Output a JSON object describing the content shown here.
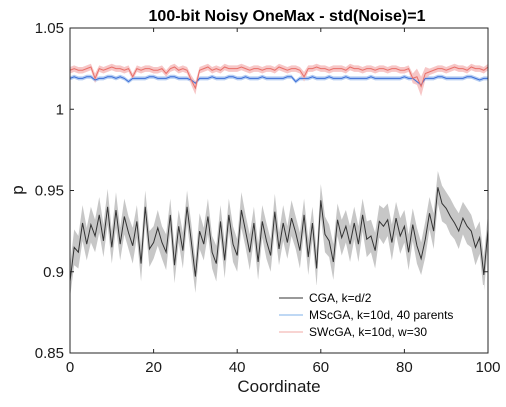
{
  "chart_data": {
    "type": "line",
    "title": "100-bit Noisy OneMax - std(Noise)=1",
    "xlabel": "Coordinate",
    "ylabel": "p",
    "xlim": [
      0,
      100
    ],
    "ylim": [
      0.85,
      1.05
    ],
    "xticks": [
      "0",
      "20",
      "40",
      "60",
      "80",
      "100"
    ],
    "yticks": [
      "0.85",
      "0.9",
      "0.95",
      "1",
      "1.05"
    ],
    "legend": {
      "position": "bottom-right",
      "entries": [
        "CGA, k=d/2",
        "MScGA, k=10d, 40 parents",
        "SWcGA, k=10d, w=30"
      ]
    },
    "series": [
      {
        "name": "CGA, k=d/2",
        "color": "#333333",
        "band_color": "#bdbdbd",
        "values": [
          0.894,
          0.915,
          0.912,
          0.93,
          0.917,
          0.929,
          0.922,
          0.935,
          0.919,
          0.94,
          0.915,
          0.938,
          0.917,
          0.934,
          0.924,
          0.916,
          0.931,
          0.905,
          0.94,
          0.914,
          0.918,
          0.927,
          0.918,
          0.912,
          0.935,
          0.904,
          0.928,
          0.913,
          0.94,
          0.919,
          0.897,
          0.925,
          0.917,
          0.934,
          0.912,
          0.905,
          0.931,
          0.907,
          0.935,
          0.917,
          0.91,
          0.938,
          0.925,
          0.912,
          0.93,
          0.906,
          0.931,
          0.919,
          0.91,
          0.937,
          0.914,
          0.93,
          0.918,
          0.933,
          0.924,
          0.913,
          0.935,
          0.909,
          0.93,
          0.902,
          0.944,
          0.923,
          0.919,
          0.906,
          0.932,
          0.921,
          0.928,
          0.917,
          0.93,
          0.917,
          0.935,
          0.92,
          0.922,
          0.913,
          0.931,
          0.928,
          0.932,
          0.918,
          0.933,
          0.922,
          0.928,
          0.912,
          0.929,
          0.916,
          0.908,
          0.92,
          0.936,
          0.925,
          0.952,
          0.942,
          0.939,
          0.934,
          0.93,
          0.925,
          0.933,
          0.928,
          0.925,
          0.915,
          0.921,
          0.898,
          0.926
        ],
        "band": [
          0.01,
          0.011,
          0.01,
          0.011,
          0.01,
          0.011,
          0.01,
          0.011,
          0.01,
          0.011,
          0.01,
          0.011,
          0.01,
          0.011,
          0.01,
          0.011,
          0.01,
          0.011,
          0.01,
          0.011,
          0.01,
          0.011,
          0.01,
          0.011,
          0.01,
          0.011,
          0.01,
          0.011,
          0.01,
          0.011,
          0.01,
          0.011,
          0.01,
          0.011,
          0.01,
          0.011,
          0.01,
          0.011,
          0.01,
          0.011,
          0.01,
          0.011,
          0.01,
          0.011,
          0.01,
          0.011,
          0.01,
          0.011,
          0.01,
          0.011,
          0.01,
          0.011,
          0.01,
          0.011,
          0.01,
          0.011,
          0.01,
          0.011,
          0.01,
          0.011,
          0.01,
          0.011,
          0.01,
          0.011,
          0.01,
          0.011,
          0.01,
          0.011,
          0.01,
          0.011,
          0.01,
          0.011,
          0.01,
          0.011,
          0.01,
          0.011,
          0.01,
          0.011,
          0.01,
          0.011,
          0.01,
          0.011,
          0.01,
          0.011,
          0.01,
          0.011,
          0.01,
          0.011,
          0.01,
          0.011,
          0.01,
          0.011,
          0.01,
          0.011,
          0.01,
          0.011,
          0.01,
          0.011,
          0.01,
          0.011,
          0.01
        ]
      },
      {
        "name": "MScGA, k=10d, 40 parents",
        "color": "#3c6fd8",
        "band_color": "#a8c4f0",
        "values": [
          1.019,
          1.02,
          1.019,
          1.019,
          1.02,
          1.02,
          1.018,
          1.019,
          1.019,
          1.02,
          1.02,
          1.019,
          1.02,
          1.019,
          1.017,
          1.019,
          1.019,
          1.019,
          1.019,
          1.02,
          1.02,
          1.019,
          1.019,
          1.019,
          1.02,
          1.02,
          1.019,
          1.019,
          1.019,
          1.018,
          1.016,
          1.019,
          1.019,
          1.019,
          1.02,
          1.019,
          1.019,
          1.019,
          1.02,
          1.02,
          1.019,
          1.019,
          1.02,
          1.019,
          1.019,
          1.019,
          1.02,
          1.019,
          1.019,
          1.019,
          1.019,
          1.019,
          1.02,
          1.02,
          1.017,
          1.019,
          1.019,
          1.019,
          1.02,
          1.019,
          1.019,
          1.019,
          1.02,
          1.019,
          1.019,
          1.019,
          1.02,
          1.019,
          1.019,
          1.019,
          1.019,
          1.019,
          1.02,
          1.019,
          1.019,
          1.019,
          1.019,
          1.019,
          1.019,
          1.019,
          1.02,
          1.019,
          1.019,
          1.017,
          1.015,
          1.019,
          1.019,
          1.019,
          1.02,
          1.02,
          1.019,
          1.019,
          1.019,
          1.019,
          1.019,
          1.02,
          1.02,
          1.019,
          1.018,
          1.019,
          1.019
        ],
        "band": [
          0.0012,
          0.0012,
          0.0012,
          0.0012,
          0.0012,
          0.0012,
          0.0012,
          0.0012,
          0.0012,
          0.0012,
          0.0012,
          0.0012,
          0.0012,
          0.0012,
          0.0012,
          0.0012,
          0.0012,
          0.0012,
          0.0012,
          0.0012,
          0.0012,
          0.0012,
          0.0012,
          0.0012,
          0.0012,
          0.0012,
          0.0012,
          0.0012,
          0.0012,
          0.0012,
          0.0012,
          0.0012,
          0.0012,
          0.0012,
          0.0012,
          0.0012,
          0.0012,
          0.0012,
          0.0012,
          0.0012,
          0.0012,
          0.0012,
          0.0012,
          0.0012,
          0.0012,
          0.0012,
          0.0012,
          0.0012,
          0.0012,
          0.0012,
          0.0012,
          0.0012,
          0.0012,
          0.0012,
          0.0012,
          0.0012,
          0.0012,
          0.0012,
          0.0012,
          0.0012,
          0.0012,
          0.0012,
          0.0012,
          0.0012,
          0.0012,
          0.0012,
          0.0012,
          0.0012,
          0.0012,
          0.0012,
          0.0012,
          0.0012,
          0.0012,
          0.0012,
          0.0012,
          0.0012,
          0.0012,
          0.0012,
          0.0012,
          0.0012,
          0.0012,
          0.0012,
          0.0012,
          0.0012,
          0.0012,
          0.0012,
          0.0012,
          0.0012,
          0.0012,
          0.0012,
          0.0012,
          0.0012,
          0.0012,
          0.0012,
          0.0012,
          0.0012,
          0.0012,
          0.0012,
          0.0012,
          0.0012,
          0.0012
        ]
      },
      {
        "name": "SWcGA, k=10d, w=30",
        "color": "#e8706a",
        "band_color": "#f6bcbc",
        "values": [
          1.024,
          1.025,
          1.024,
          1.024,
          1.025,
          1.026,
          1.019,
          1.025,
          1.024,
          1.025,
          1.026,
          1.025,
          1.025,
          1.024,
          1.025,
          1.02,
          1.025,
          1.024,
          1.025,
          1.025,
          1.024,
          1.024,
          1.025,
          1.022,
          1.025,
          1.026,
          1.024,
          1.025,
          1.024,
          1.018,
          1.013,
          1.024,
          1.025,
          1.026,
          1.024,
          1.025,
          1.024,
          1.026,
          1.025,
          1.025,
          1.025,
          1.026,
          1.025,
          1.024,
          1.025,
          1.025,
          1.024,
          1.025,
          1.025,
          1.024,
          1.026,
          1.025,
          1.024,
          1.025,
          1.025,
          1.024,
          1.02,
          1.025,
          1.025,
          1.026,
          1.025,
          1.025,
          1.024,
          1.025,
          1.025,
          1.025,
          1.024,
          1.026,
          1.025,
          1.025,
          1.024,
          1.025,
          1.025,
          1.024,
          1.025,
          1.025,
          1.024,
          1.025,
          1.025,
          1.024,
          1.024,
          1.025,
          1.019,
          1.02,
          1.014,
          1.022,
          1.023,
          1.024,
          1.025,
          1.025,
          1.024,
          1.025,
          1.026,
          1.025,
          1.025,
          1.024,
          1.026,
          1.025,
          1.025,
          1.024,
          1.026
        ],
        "band": [
          0.002,
          0.002,
          0.002,
          0.002,
          0.002,
          0.002,
          0.003,
          0.002,
          0.002,
          0.002,
          0.002,
          0.002,
          0.002,
          0.002,
          0.002,
          0.002,
          0.002,
          0.002,
          0.002,
          0.002,
          0.002,
          0.002,
          0.002,
          0.002,
          0.002,
          0.002,
          0.002,
          0.002,
          0.002,
          0.003,
          0.004,
          0.002,
          0.002,
          0.002,
          0.002,
          0.002,
          0.002,
          0.002,
          0.002,
          0.002,
          0.002,
          0.002,
          0.002,
          0.002,
          0.002,
          0.002,
          0.002,
          0.002,
          0.002,
          0.002,
          0.002,
          0.002,
          0.002,
          0.002,
          0.002,
          0.002,
          0.003,
          0.002,
          0.002,
          0.002,
          0.002,
          0.002,
          0.002,
          0.002,
          0.002,
          0.002,
          0.002,
          0.002,
          0.002,
          0.002,
          0.002,
          0.002,
          0.002,
          0.002,
          0.002,
          0.002,
          0.002,
          0.002,
          0.002,
          0.002,
          0.002,
          0.002,
          0.003,
          0.005,
          0.006,
          0.004,
          0.002,
          0.002,
          0.002,
          0.002,
          0.002,
          0.002,
          0.002,
          0.002,
          0.002,
          0.002,
          0.002,
          0.002,
          0.002,
          0.002,
          0.002
        ]
      }
    ]
  }
}
